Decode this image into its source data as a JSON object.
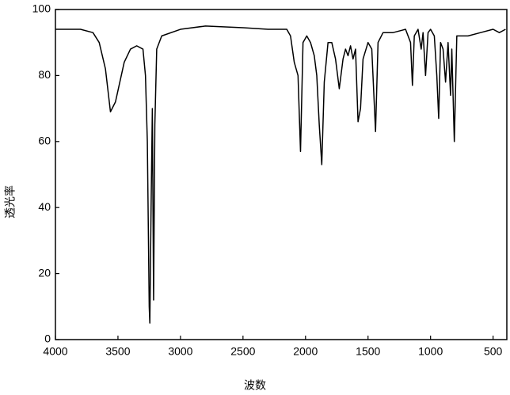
{
  "chart_data": {
    "type": "line",
    "xlabel": "波数",
    "ylabel": "透光率",
    "xlim": [
      4000,
      390
    ],
    "ylim": [
      0,
      100
    ],
    "xticks": [
      4000,
      3500,
      3000,
      2500,
      2000,
      1500,
      1000,
      500
    ],
    "yticks": [
      0,
      20,
      40,
      60,
      80,
      100
    ],
    "series": [
      {
        "color": "#000000",
        "x": [
          4000,
          3800,
          3700,
          3650,
          3600,
          3560,
          3520,
          3450,
          3400,
          3350,
          3300,
          3280,
          3265,
          3250,
          3245,
          3235,
          3225,
          3215,
          3205,
          3190,
          3150,
          3000,
          2800,
          2500,
          2300,
          2150,
          2120,
          2090,
          2075,
          2060,
          2040,
          2020,
          1990,
          1960,
          1930,
          1910,
          1890,
          1870,
          1850,
          1820,
          1790,
          1760,
          1730,
          1700,
          1680,
          1660,
          1640,
          1620,
          1600,
          1580,
          1560,
          1540,
          1500,
          1470,
          1440,
          1420,
          1380,
          1300,
          1200,
          1160,
          1145,
          1130,
          1100,
          1075,
          1060,
          1040,
          1020,
          1000,
          970,
          950,
          935,
          920,
          900,
          880,
          860,
          840,
          830,
          810,
          790,
          700,
          600,
          500,
          450,
          400
        ],
        "values": [
          94,
          94,
          93,
          90,
          82,
          69,
          72,
          84,
          88,
          89,
          88,
          80,
          60,
          10,
          5,
          40,
          70,
          12,
          65,
          88,
          92,
          94,
          95,
          94.5,
          94,
          94,
          92,
          84,
          82,
          80,
          57,
          90,
          92,
          90,
          86,
          80,
          65,
          53,
          78,
          90,
          90,
          85,
          76,
          85,
          88,
          86,
          89,
          85,
          88,
          66,
          70,
          85,
          90,
          88,
          63,
          90,
          93,
          93,
          94,
          90,
          77,
          92,
          94,
          88,
          93,
          80,
          93,
          94,
          92,
          80,
          67,
          90,
          88,
          78,
          90,
          74,
          88,
          60,
          92,
          92,
          93,
          94,
          93,
          94
        ]
      }
    ]
  }
}
